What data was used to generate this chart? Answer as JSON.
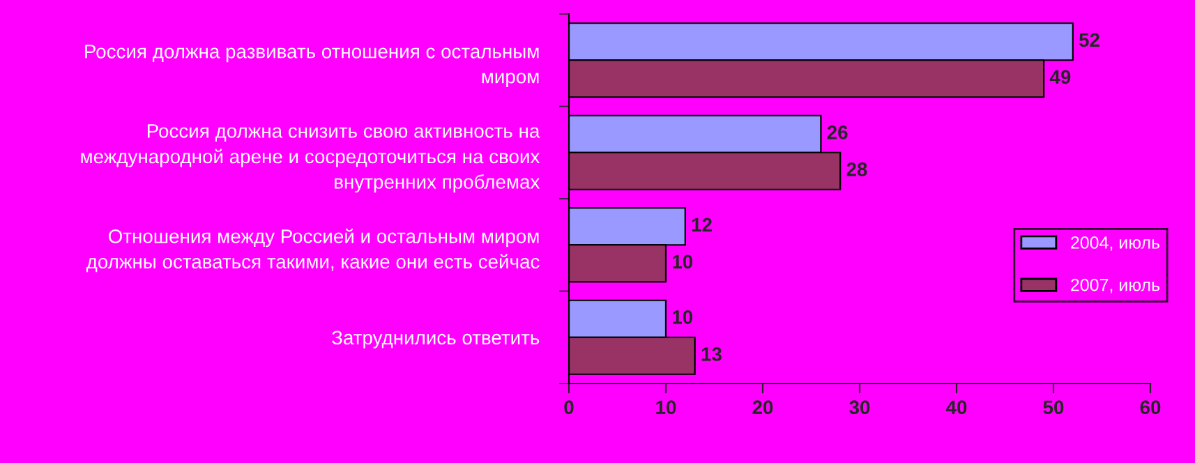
{
  "chart_data": {
    "type": "bar",
    "orientation": "horizontal",
    "categories": [
      "Россия должна развивать отношения с остальным\nмиром",
      "Россия должна снизить свою активность на\nмеждународной арене и сосредоточиться на своих\nвнутренних проблемах",
      "Отношения между Россией и остальным миром\nдолжны оставаться такими, какие они есть сейчас",
      "Затруднились ответить"
    ],
    "series": [
      {
        "name": "2004, июль",
        "color": "#9999ff",
        "values": [
          52,
          26,
          12,
          10
        ]
      },
      {
        "name": "2007, июль",
        "color": "#993366",
        "values": [
          49,
          28,
          10,
          13
        ]
      }
    ],
    "xlim": [
      0,
      60
    ],
    "xticks": [
      0,
      10,
      20,
      30,
      40,
      50,
      60
    ],
    "data_labels": true,
    "legend": "right",
    "grid": false
  }
}
